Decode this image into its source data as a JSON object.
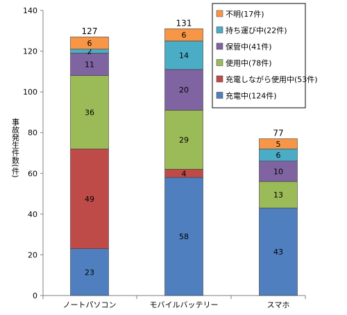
{
  "chart_data": {
    "type": "bar",
    "stacked": true,
    "categories": [
      "ノートパソコン",
      "モバイルバッテリー",
      "スマホ"
    ],
    "series": [
      {
        "name": "充電中(124件)",
        "values": [
          23,
          58,
          43
        ],
        "color": "#4f7fbf"
      },
      {
        "name": "充電しながら使用中(53件)",
        "values": [
          49,
          4,
          0
        ],
        "color": "#bf4b48"
      },
      {
        "name": "使用中(78件)",
        "values": [
          36,
          29,
          13
        ],
        "color": "#9bbb59"
      },
      {
        "name": "保管中(41件)",
        "values": [
          11,
          20,
          10
        ],
        "color": "#8064a2"
      },
      {
        "name": "持ち運び中(22件)",
        "values": [
          2,
          14,
          6
        ],
        "color": "#4bacc6"
      },
      {
        "name": "不明(17件)",
        "values": [
          6,
          6,
          5
        ],
        "color": "#f79646"
      }
    ],
    "totals": [
      127,
      131,
      77
    ],
    "ylabel": "事故発生件数(件)",
    "ylim": [
      0,
      140
    ],
    "yticks": [
      0,
      20,
      40,
      60,
      80,
      100,
      120,
      140
    ],
    "legend_position": "top-right",
    "grid": false
  }
}
